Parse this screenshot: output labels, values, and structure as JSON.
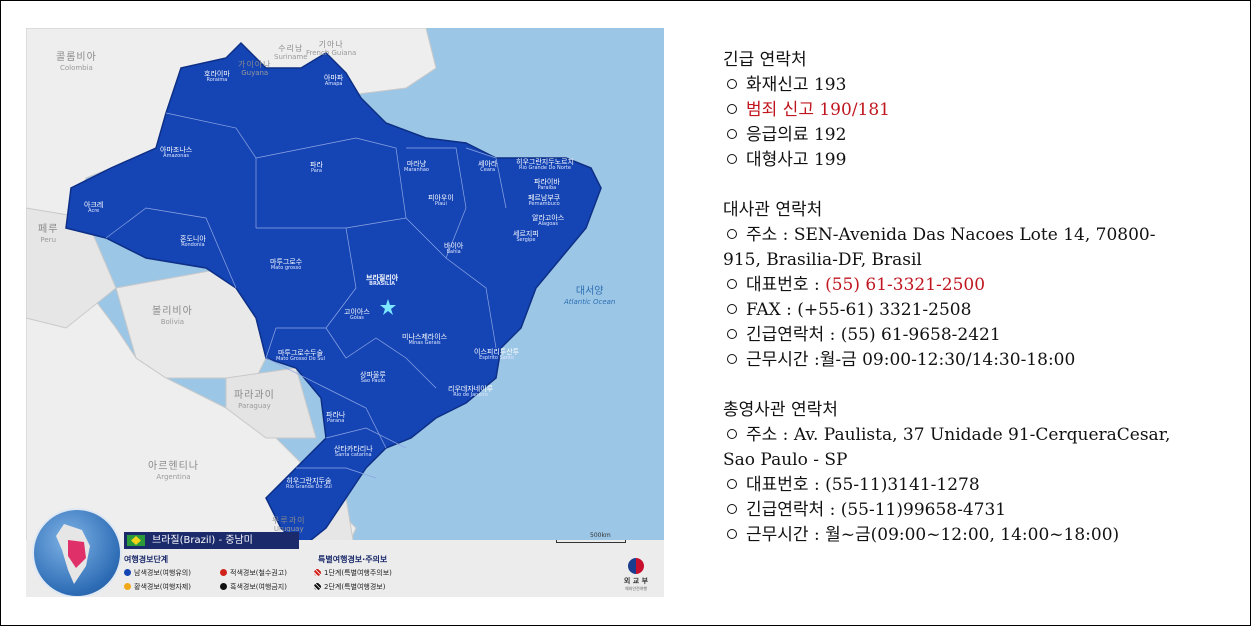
{
  "map": {
    "country_title": "브라질(Brazil) - 중남미",
    "labels": {
      "colombia": {
        "ko": "콜롬비아",
        "en": "Colombia"
      },
      "suriname": {
        "ko": "수리남",
        "en": "Suriname"
      },
      "guyana": {
        "ko": "가이아나",
        "en": "Guyana"
      },
      "french_guiana": {
        "ko": "기아나",
        "en": "French Guiana"
      },
      "peru": {
        "ko": "페루",
        "en": "Peru"
      },
      "bolivia": {
        "ko": "볼리비아",
        "en": "Bolivia"
      },
      "paraguay": {
        "ko": "파라과이",
        "en": "Paraguay"
      },
      "argentina": {
        "ko": "아르헨티나",
        "en": "Argentina"
      },
      "uruguay": {
        "ko": "우루과이",
        "en": "Uruguay"
      },
      "atlantic": {
        "ko": "대서양",
        "en": "Atlantic Ocean"
      },
      "roraima": {
        "ko": "호라이마",
        "en": "Roraima"
      },
      "amapa": {
        "ko": "아마파",
        "en": "Amapa"
      },
      "amazonas": {
        "ko": "아마조나스",
        "en": "Amazonas"
      },
      "para": {
        "ko": "파라",
        "en": "Para"
      },
      "maranhao": {
        "ko": "마라냥",
        "en": "Maranhao"
      },
      "ceara": {
        "ko": "세아라",
        "en": "Ceara"
      },
      "rn": {
        "ko": "히우그란지두노르치",
        "en": "Rio Grande Do Norte"
      },
      "paraiba": {
        "ko": "파라이바",
        "en": "Paraiba"
      },
      "pernambuco": {
        "ko": "페르남부쿠",
        "en": "Pernambuco"
      },
      "alagoas": {
        "ko": "알라고아스",
        "en": "Alagoas"
      },
      "sergipe": {
        "ko": "세르지피",
        "en": "Sergipe"
      },
      "piaui": {
        "ko": "피아우이",
        "en": "Piaui"
      },
      "acre": {
        "ko": "아크레",
        "en": "Acre"
      },
      "rondonia": {
        "ko": "혼도니아",
        "en": "Rondonia"
      },
      "mato_grosso": {
        "ko": "마투그로수",
        "en": "Mato grosso"
      },
      "bahia": {
        "ko": "바이아",
        "en": "Bahia"
      },
      "brasilia": {
        "ko": "브라질리아",
        "en": "BRASILIA"
      },
      "goias": {
        "ko": "고이아스",
        "en": "Goias"
      },
      "minas": {
        "ko": "미나스제라이스",
        "en": "Minas Gerais"
      },
      "mgs": {
        "ko": "마투그로수두술",
        "en": "Mato Grosso Do Sul"
      },
      "espirito": {
        "ko": "이스피리투산투",
        "en": "Espirito Santo"
      },
      "sao_paulo": {
        "ko": "상파울루",
        "en": "Sao Paulo"
      },
      "rio": {
        "ko": "리우데자네이루",
        "en": "Rio de Janeiro"
      },
      "parana": {
        "ko": "파라나",
        "en": "Parana"
      },
      "santa_catarina": {
        "ko": "산타카타리나",
        "en": "Santa catarina"
      },
      "rgs": {
        "ko": "히우그란지두술",
        "en": "Rio Grande Do Sul"
      }
    },
    "scale": "500km",
    "legend": {
      "left_title": "여행경보단계",
      "right_title": "특별여행경보·주의보",
      "blue": "남색경보(여행유의)",
      "red": "적색경보(철수권고)",
      "yellow": "황색경보(여행자제)",
      "black": "흑색경보(여행금지)",
      "special1": "1단계(특별여행주의보)",
      "special2": "2단계(특별여행경보)"
    },
    "ministry": {
      "name": "외 교 부",
      "sub": "해외안전여행"
    },
    "colors": {
      "brazil": "#1545b5",
      "ocean": "#9cc6e6",
      "neighbors": "#eeeeee"
    }
  },
  "emergency": {
    "heading": "긴급 연락처",
    "items": [
      "화재신고 193",
      "범죄 신고 190/181",
      "응급의료 192",
      "대형사고 199"
    ]
  },
  "embassy": {
    "heading": "대사관 연락처",
    "address_1": "주소 : SEN-Avenida Das Nacoes Lote 14, 70800-",
    "address_2": "915, Brasilia-DF, Brasil",
    "phone_label": "대표번호 : ",
    "phone": "(55) 61-3321-2500",
    "fax": "FAX : (+55-61) 3321-2508",
    "emergency": "긴급연락처 : (55) 61-9658-2421",
    "hours": "근무시간 :월-금 09:00-12:30/14:30-18:00"
  },
  "consulate": {
    "heading": "총영사관 연락처",
    "address_1": "주소 : Av. Paulista, 37 Unidade 91-CerqueraCesar,",
    "address_2": "Sao Paulo - SP",
    "phone": "대표번호 : (55-11)3141-1278",
    "emergency": "긴급연락처 : (55-11)99658-4731",
    "hours": "근무시간 : 월~금(09:00~12:00, 14:00~18:00)"
  }
}
